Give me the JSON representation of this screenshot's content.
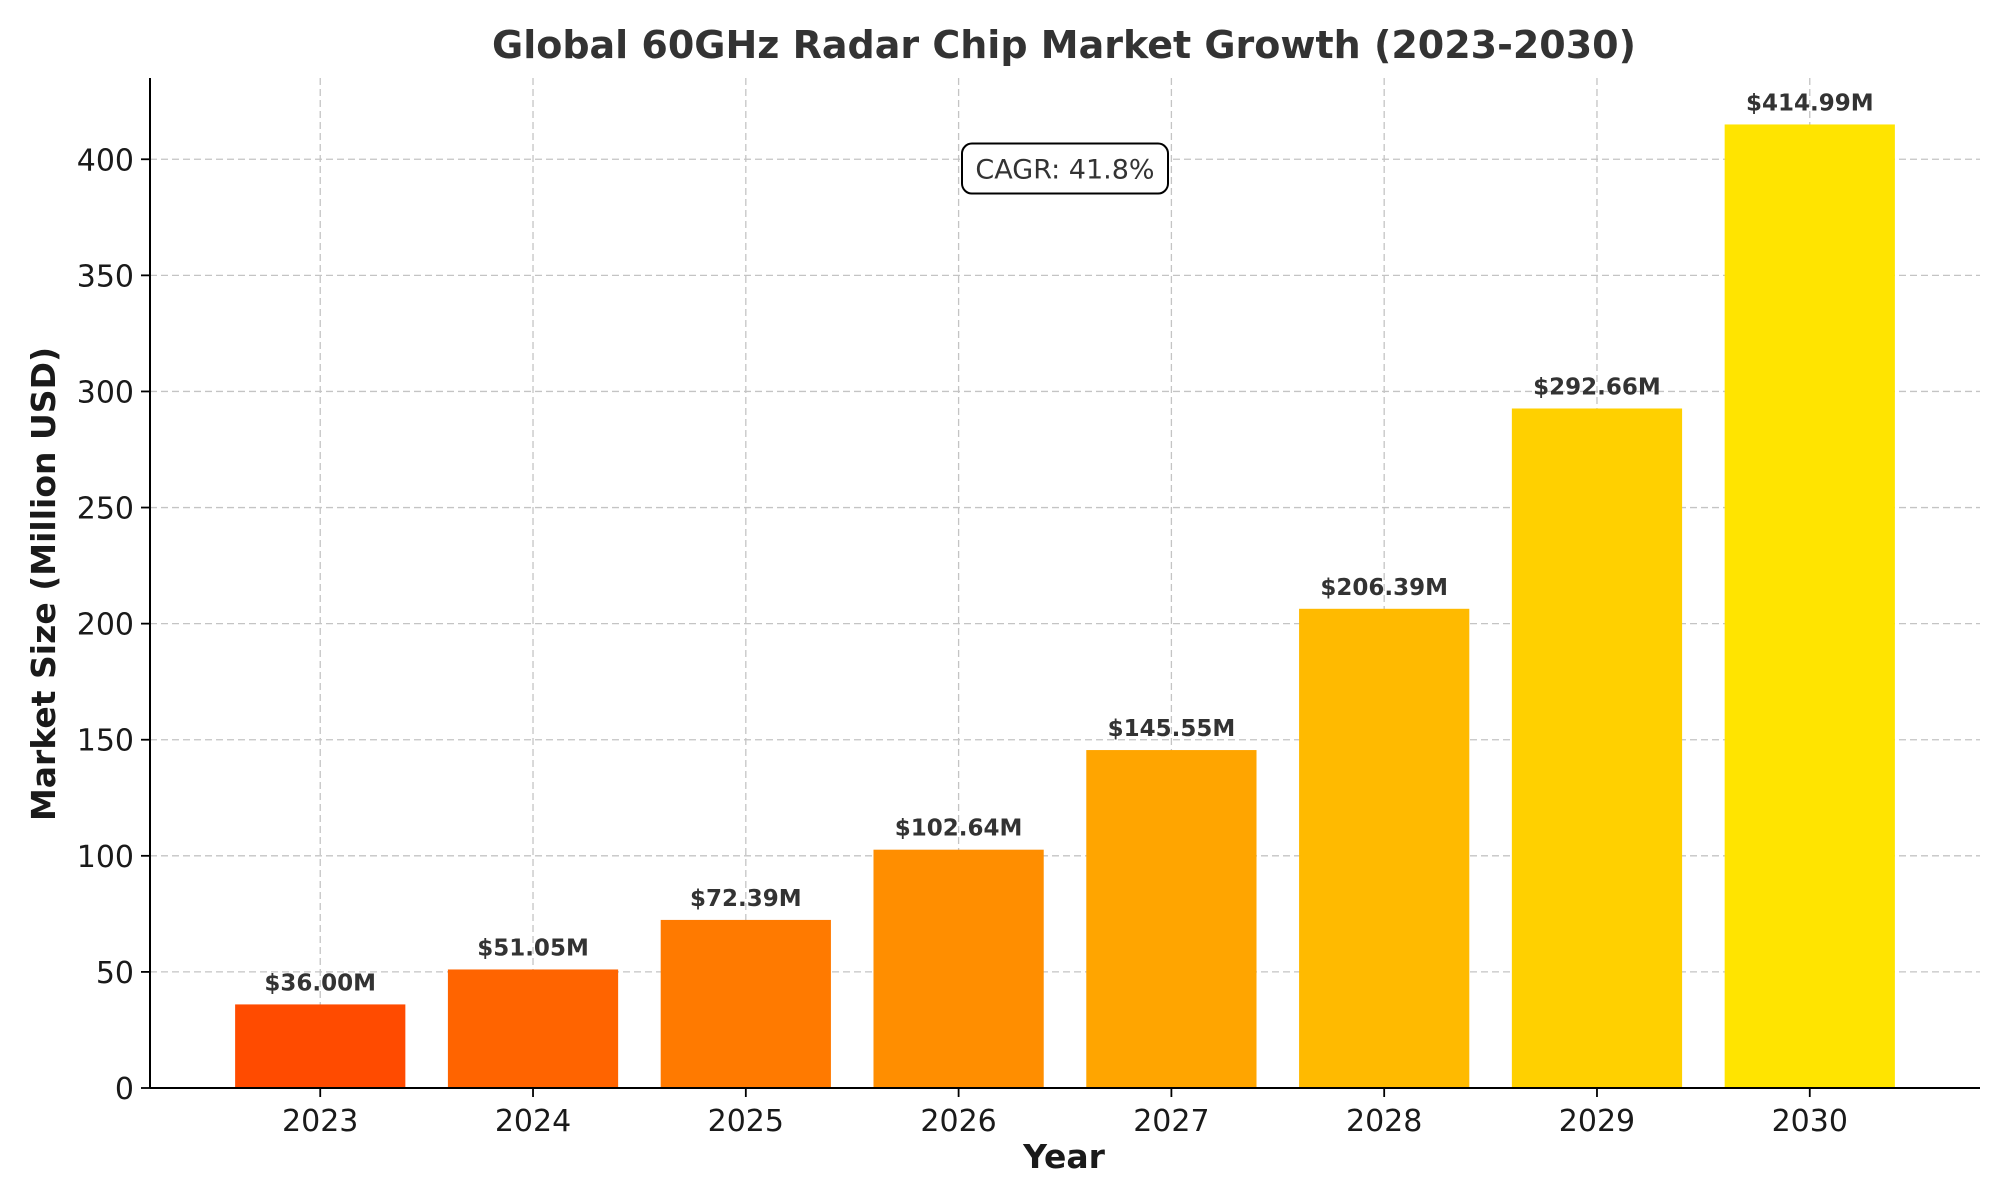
{
  "chart_data": {
    "type": "bar",
    "title": "Global 60GHz Radar Chip Market Growth (2023-2030)",
    "xlabel": "Year",
    "ylabel": "Market Size (Million USD)",
    "categories": [
      "2023",
      "2024",
      "2025",
      "2026",
      "2027",
      "2028",
      "2029",
      "2030"
    ],
    "values": [
      36.0,
      51.05,
      72.39,
      102.64,
      145.55,
      206.39,
      292.66,
      414.99
    ],
    "value_labels": [
      "$36.00M",
      "$51.05M",
      "$72.39M",
      "$102.64M",
      "$145.55M",
      "$206.39M",
      "$292.66M",
      "$414.99M"
    ],
    "colors": [
      "#ff4b00",
      "#ff6400",
      "#ff7a00",
      "#ff8e00",
      "#ffa500",
      "#ffba00",
      "#ffd000",
      "#ffe400"
    ],
    "ylim": [
      0,
      435
    ],
    "yticks": [
      0,
      50,
      100,
      150,
      200,
      250,
      300,
      350,
      400
    ],
    "ytick_labels": [
      "0",
      "50",
      "100",
      "150",
      "200",
      "250",
      "300",
      "350",
      "400"
    ],
    "grid": true,
    "annotation": {
      "text": "CAGR: 41.8%",
      "x_category": "2026",
      "y_value": 396
    }
  }
}
